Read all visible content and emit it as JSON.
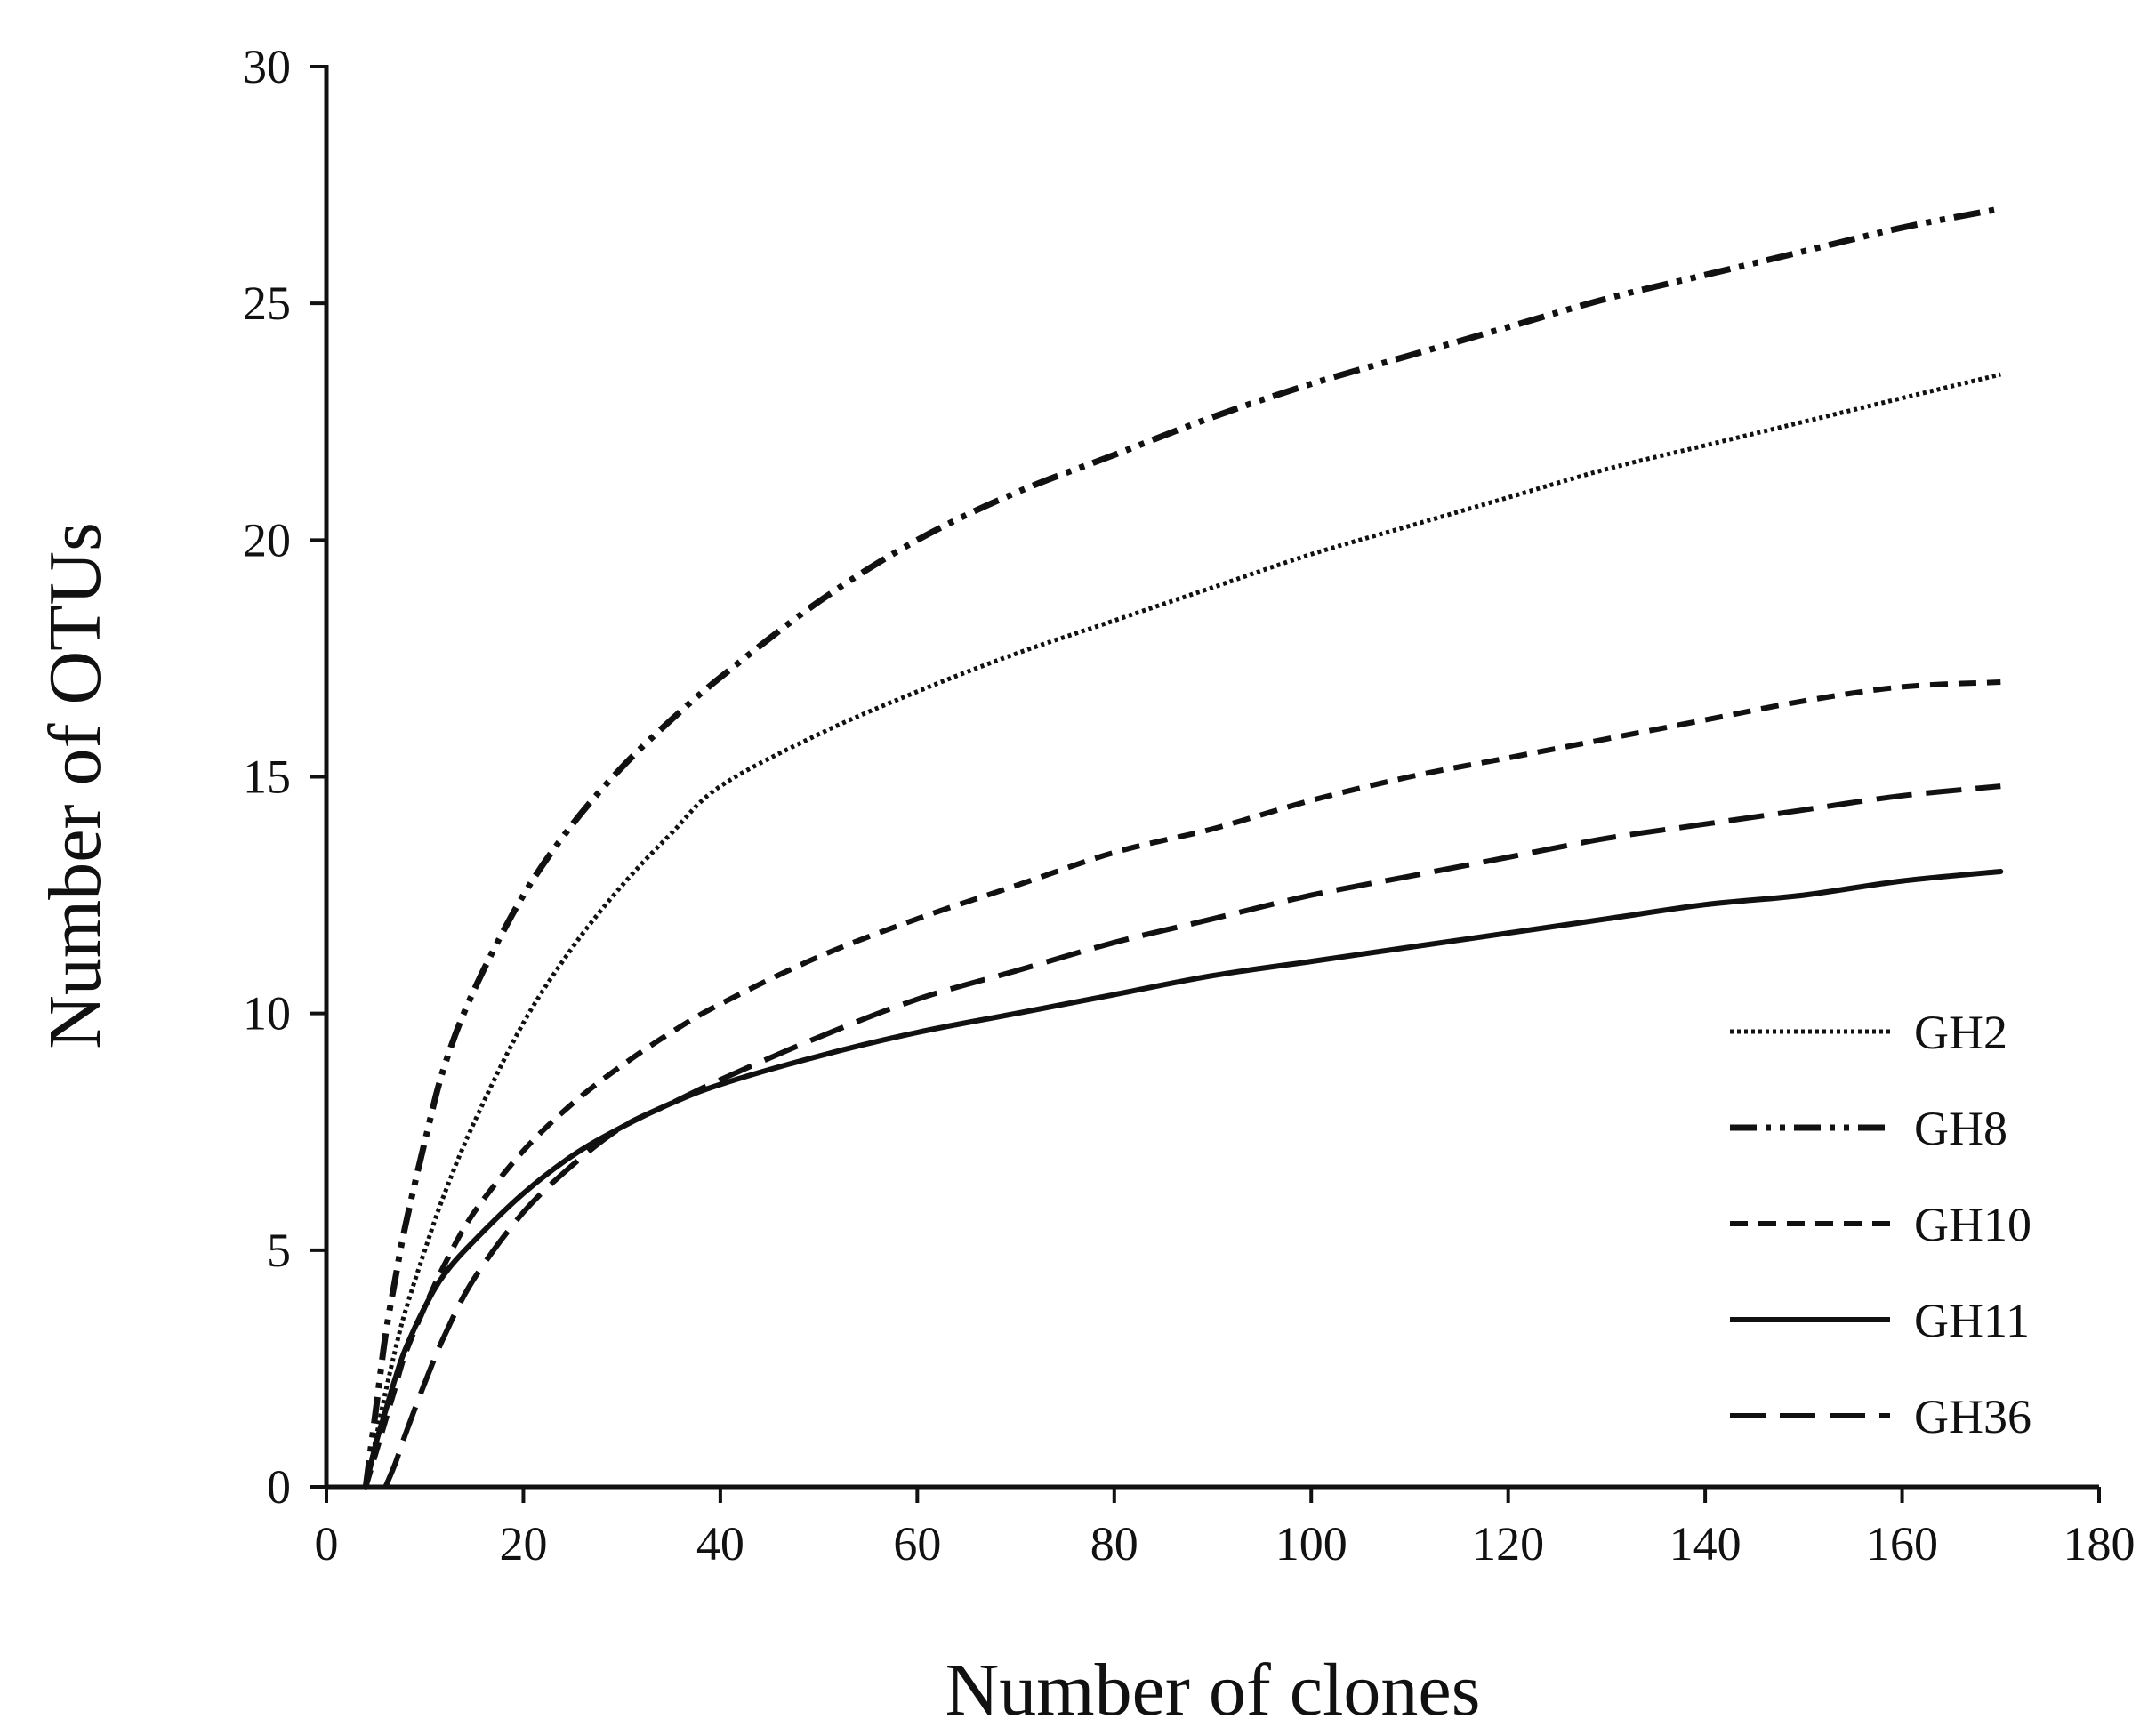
{
  "chart_data": {
    "type": "line",
    "title": "",
    "xlabel": "Number of clones",
    "ylabel": "Number of OTUs",
    "xlim": [
      0,
      180
    ],
    "ylim": [
      0,
      30
    ],
    "x_ticks": [
      "0",
      "20",
      "40",
      "60",
      "80",
      "100",
      "120",
      "140",
      "160",
      "180"
    ],
    "y_ticks": [
      "0",
      "5",
      "10",
      "15",
      "20",
      "25",
      "30"
    ],
    "grid": false,
    "legend_position": "right",
    "line_color": "#111111",
    "x": [
      4,
      5,
      6,
      7,
      8,
      10,
      12,
      15,
      20,
      25,
      30,
      35,
      40,
      50,
      60,
      70,
      80,
      90,
      100,
      110,
      120,
      130,
      140,
      150,
      160,
      170
    ],
    "series": [
      {
        "name": "GH2",
        "style": "dotted",
        "values": [
          0,
          1.0,
          2.0,
          2.9,
          3.7,
          5.0,
          6.2,
          7.7,
          9.8,
          11.4,
          12.7,
          13.8,
          14.8,
          15.9,
          16.8,
          17.6,
          18.3,
          19.0,
          19.7,
          20.3,
          20.9,
          21.5,
          22.0,
          22.5,
          23.0,
          23.5
        ]
      },
      {
        "name": "GH8",
        "style": "dash-dot-dot",
        "values": [
          0,
          1.6,
          3.2,
          4.4,
          5.5,
          7.3,
          8.9,
          10.5,
          12.5,
          14.0,
          15.2,
          16.2,
          17.1,
          18.7,
          20.0,
          21.0,
          21.8,
          22.6,
          23.3,
          23.9,
          24.5,
          25.1,
          25.6,
          26.1,
          26.6,
          27.0
        ]
      },
      {
        "name": "GH10",
        "style": "short-dash",
        "values": [
          0,
          0.7,
          1.4,
          2.1,
          2.8,
          3.8,
          4.7,
          5.8,
          7.1,
          8.1,
          8.9,
          9.6,
          10.2,
          11.2,
          12.0,
          12.7,
          13.4,
          13.9,
          14.5,
          15.0,
          15.4,
          15.8,
          16.2,
          16.6,
          16.9,
          17.0
        ]
      },
      {
        "name": "GH11",
        "style": "solid",
        "values": [
          0,
          0.9,
          1.6,
          2.3,
          2.9,
          3.8,
          4.5,
          5.2,
          6.2,
          7.0,
          7.6,
          8.1,
          8.5,
          9.1,
          9.6,
          10.0,
          10.4,
          10.8,
          11.1,
          11.4,
          11.7,
          12.0,
          12.3,
          12.5,
          12.8,
          13.0
        ]
      },
      {
        "name": "GH36",
        "style": "long-dash",
        "values": [
          0,
          0,
          0,
          0.5,
          1.1,
          2.2,
          3.2,
          4.4,
          5.8,
          6.8,
          7.6,
          8.1,
          8.6,
          9.5,
          10.3,
          10.9,
          11.5,
          12.0,
          12.5,
          12.9,
          13.3,
          13.7,
          14.0,
          14.3,
          14.6,
          14.8
        ]
      }
    ]
  }
}
